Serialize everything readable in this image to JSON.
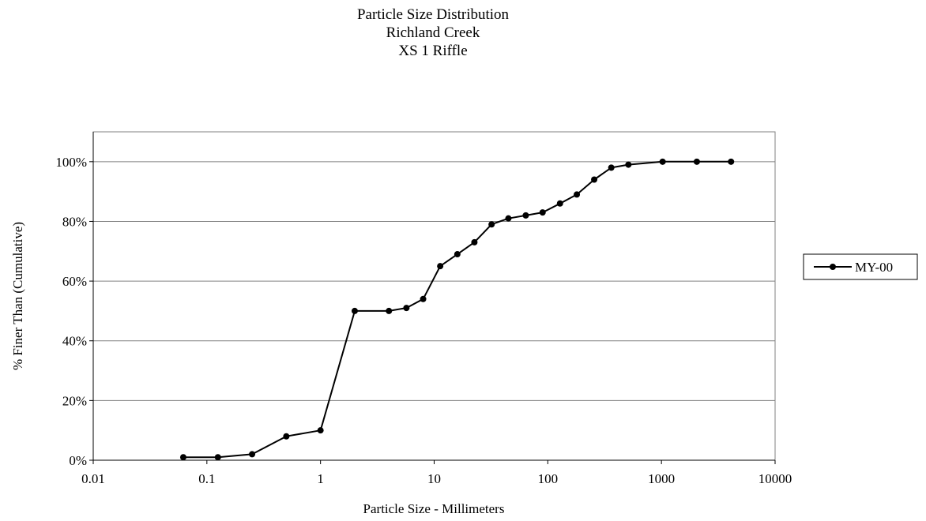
{
  "chart_data": {
    "type": "line",
    "title": [
      "Particle Size Distribution",
      "Richland Creek",
      "XS 1 Riffle"
    ],
    "xlabel": "Particle Size - Millimeters",
    "ylabel": "% Finer Than (Cumulative)",
    "x_scale": "log",
    "xlim": [
      0.01,
      10000
    ],
    "ylim": [
      0,
      110
    ],
    "x_ticks": [
      "0.01",
      "0.1",
      "1",
      "10",
      "100",
      "1000",
      "10000"
    ],
    "y_ticks": [
      "0%",
      "20%",
      "40%",
      "60%",
      "80%",
      "100%"
    ],
    "grid": "horizontal",
    "legend_position": "right",
    "series": [
      {
        "name": "MY-00",
        "color": "#000000",
        "marker": "circle",
        "x": [
          0.062,
          0.125,
          0.25,
          0.5,
          1,
          2,
          4,
          5.7,
          8,
          11.3,
          16,
          22.6,
          32,
          45,
          64,
          90,
          128,
          180,
          256,
          362,
          512,
          1024,
          2048,
          4096
        ],
        "y": [
          1,
          1,
          2,
          8,
          10,
          50,
          50,
          51,
          54,
          65,
          69,
          73,
          79,
          81,
          82,
          83,
          86,
          89,
          94,
          98,
          99,
          100,
          100,
          100
        ]
      }
    ]
  }
}
